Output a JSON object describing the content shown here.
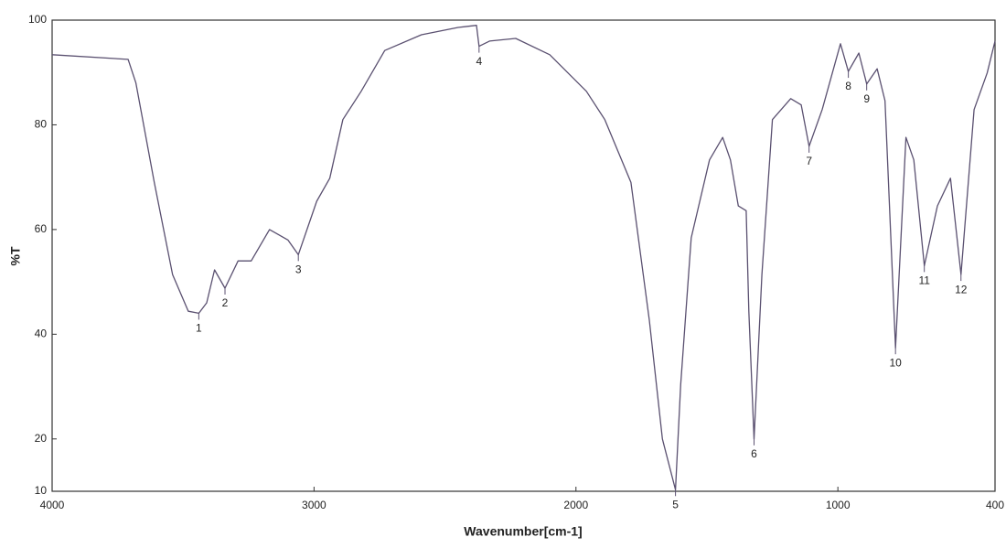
{
  "chart_data": {
    "type": "line",
    "xlabel": "Wavenumber[cm-1]",
    "ylabel": "%T",
    "xlim": [
      4000,
      400
    ],
    "ylim": [
      10,
      100
    ],
    "xticks": [
      4000,
      3000,
      2000,
      1000,
      400
    ],
    "yticks": [
      10,
      20,
      40,
      60,
      80,
      100
    ],
    "color": "#5a5070",
    "x": [
      4000,
      3710,
      3680,
      3610,
      3540,
      3480,
      3440,
      3410,
      3380,
      3340,
      3290,
      3240,
      3170,
      3100,
      3060,
      2990,
      2940,
      2890,
      2820,
      2730,
      2590,
      2450,
      2380,
      2370,
      2330,
      2230,
      2100,
      1960,
      1890,
      1790,
      1720,
      1670,
      1620,
      1600,
      1560,
      1490,
      1440,
      1410,
      1380,
      1350,
      1340,
      1320,
      1290,
      1250,
      1180,
      1140,
      1110,
      1060,
      990,
      960,
      920,
      890,
      850,
      820,
      780,
      740,
      710,
      670,
      620,
      570,
      530,
      480,
      430,
      400
    ],
    "values": [
      93.4,
      92.5,
      88,
      69,
      51.4,
      44.4,
      44,
      46,
      52.3,
      48.8,
      54,
      54,
      60,
      58,
      55.2,
      65.4,
      69.8,
      81,
      86.4,
      94.2,
      97.2,
      98.6,
      99,
      95,
      96,
      96.5,
      93.4,
      86.4,
      81,
      69,
      42.7,
      20,
      10.3,
      30.4,
      58.4,
      73.3,
      77.6,
      73.3,
      64.5,
      63.6,
      44.4,
      20,
      51.4,
      81,
      85,
      83.8,
      75.9,
      82.9,
      95.5,
      90.2,
      93.7,
      87.8,
      90.7,
      84.6,
      37.4,
      77.6,
      73.3,
      53.1,
      64.5,
      69.8,
      51.4,
      82.9,
      89.9,
      96
    ],
    "annotations": [
      {
        "text": "1",
        "x": 3440,
        "y": 44
      },
      {
        "text": "2",
        "x": 3340,
        "y": 48.8
      },
      {
        "text": "3",
        "x": 3060,
        "y": 55.2
      },
      {
        "text": "4",
        "x": 2370,
        "y": 95
      },
      {
        "text": "5",
        "x": 1620,
        "y": 10.3
      },
      {
        "text": "6",
        "x": 1320,
        "y": 20
      },
      {
        "text": "7",
        "x": 1110,
        "y": 75.9
      },
      {
        "text": "8",
        "x": 960,
        "y": 90.2
      },
      {
        "text": "9",
        "x": 890,
        "y": 87.8
      },
      {
        "text": "10",
        "x": 780,
        "y": 37.4
      },
      {
        "text": "11",
        "x": 670,
        "y": 53.1
      },
      {
        "text": "12",
        "x": 530,
        "y": 51.4
      }
    ]
  }
}
